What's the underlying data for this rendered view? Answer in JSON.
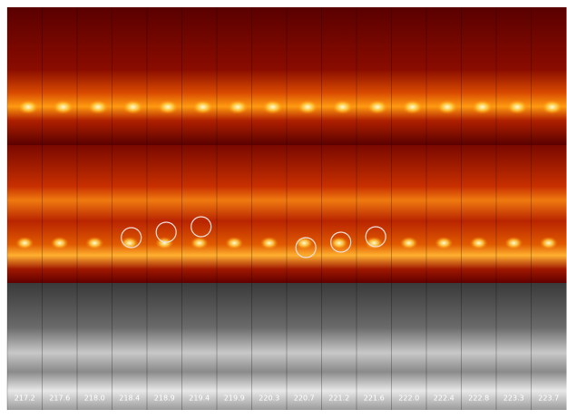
{
  "frames": {
    "labels": [
      "217.2",
      "217.6",
      "218.0",
      "218.4",
      "218.9",
      "219.4",
      "219.9",
      "220.3",
      "220.7",
      "221.2",
      "221.6",
      "222.0",
      "222.4",
      "222.8",
      "223.3",
      "223.7"
    ]
  }
}
